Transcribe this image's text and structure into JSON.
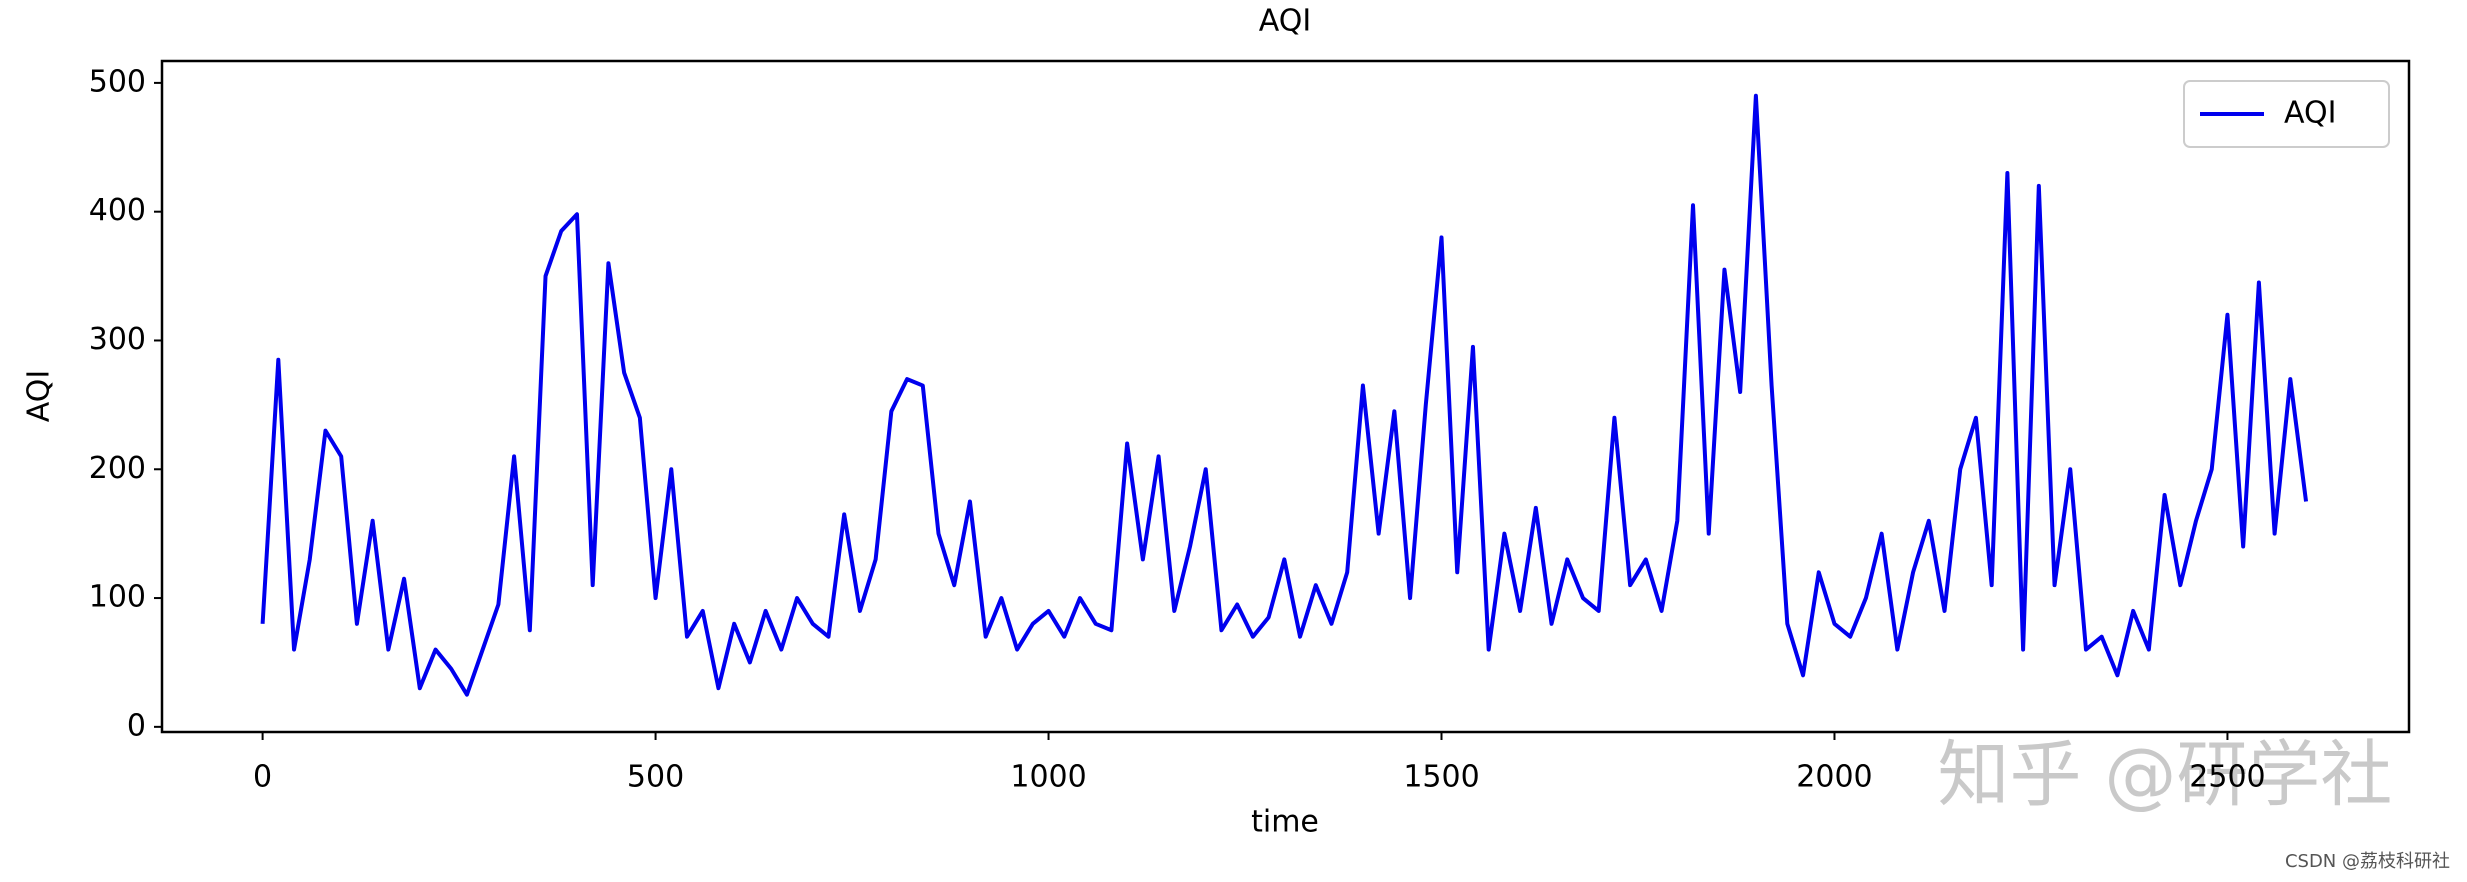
{
  "chart_data": {
    "type": "line",
    "title": "AQI",
    "xlabel": "time",
    "ylabel": "AQI",
    "x": [
      0,
      20,
      40,
      60,
      80,
      100,
      120,
      140,
      160,
      180,
      200,
      220,
      240,
      260,
      280,
      300,
      320,
      340,
      360,
      380,
      400,
      420,
      440,
      460,
      480,
      500,
      520,
      540,
      560,
      580,
      600,
      620,
      640,
      660,
      680,
      700,
      720,
      740,
      760,
      780,
      800,
      820,
      840,
      860,
      880,
      900,
      920,
      940,
      960,
      980,
      1000,
      1020,
      1040,
      1060,
      1080,
      1100,
      1120,
      1140,
      1160,
      1180,
      1200,
      1220,
      1240,
      1260,
      1280,
      1300,
      1320,
      1340,
      1360,
      1380,
      1400,
      1420,
      1440,
      1460,
      1480,
      1500,
      1520,
      1540,
      1560,
      1580,
      1600,
      1620,
      1640,
      1660,
      1680,
      1700,
      1720,
      1740,
      1760,
      1780,
      1800,
      1820,
      1840,
      1860,
      1880,
      1900,
      1920,
      1940,
      1960,
      1980,
      2000,
      2020,
      2040,
      2060,
      2080,
      2100,
      2120,
      2140,
      2160,
      2180,
      2200,
      2220,
      2240,
      2260,
      2280,
      2300,
      2320,
      2340,
      2360,
      2380,
      2400,
      2420,
      2440,
      2460,
      2480,
      2500,
      2520,
      2540,
      2560,
      2580,
      2600
    ],
    "series": [
      {
        "name": "AQI",
        "color": "#0000ee",
        "values": [
          80,
          285,
          60,
          130,
          230,
          210,
          80,
          160,
          60,
          115,
          30,
          60,
          45,
          25,
          60,
          95,
          210,
          75,
          350,
          385,
          398,
          110,
          360,
          275,
          240,
          100,
          200,
          70,
          90,
          30,
          80,
          50,
          90,
          60,
          100,
          80,
          70,
          165,
          90,
          130,
          245,
          270,
          265,
          150,
          110,
          175,
          70,
          100,
          60,
          80,
          90,
          70,
          100,
          80,
          75,
          220,
          130,
          210,
          90,
          140,
          200,
          75,
          95,
          70,
          85,
          130,
          70,
          110,
          80,
          120,
          265,
          150,
          245,
          100,
          250,
          380,
          120,
          295,
          60,
          150,
          90,
          170,
          80,
          130,
          100,
          90,
          240,
          110,
          130,
          90,
          160,
          405,
          150,
          355,
          260,
          490,
          265,
          80,
          40,
          120,
          80,
          70,
          100,
          150,
          60,
          120,
          160,
          90,
          200,
          240,
          110,
          430,
          60,
          420,
          110,
          200,
          60,
          70,
          40,
          90,
          60,
          180,
          110,
          160,
          200,
          320,
          140,
          345,
          150,
          270,
          175
        ]
      }
    ],
    "xlim": [
      -128,
      2731
    ],
    "ylim": [
      -4,
      517
    ],
    "xticks": [
      0,
      500,
      1000,
      1500,
      2000,
      2500
    ],
    "yticks": [
      0,
      100,
      200,
      300,
      400,
      500
    ],
    "legend": "upper right",
    "annotations": [
      "知乎 @研学社",
      "CSDN @荔枝科研社"
    ]
  }
}
